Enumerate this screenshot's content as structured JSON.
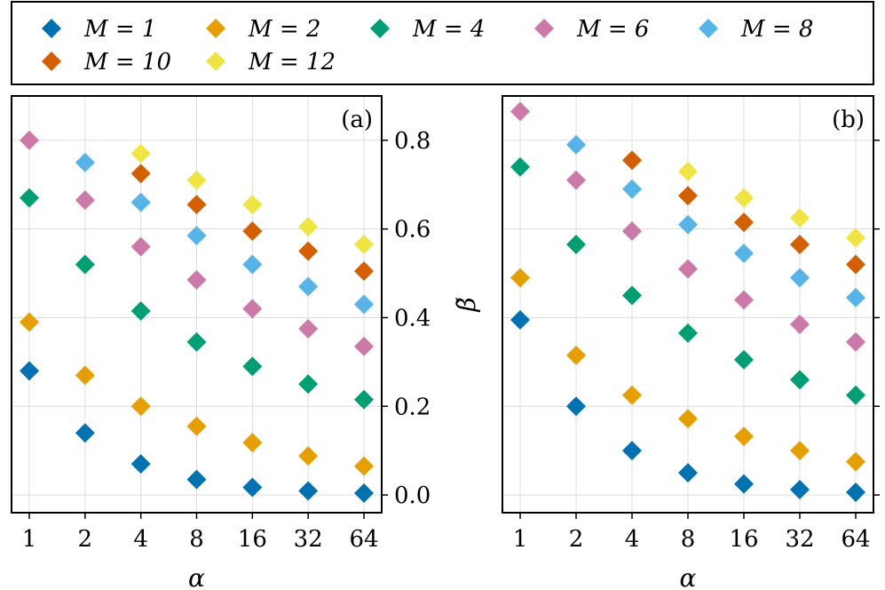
{
  "legend": {
    "entries": [
      {
        "label": "M = 1",
        "color": "#0072B2"
      },
      {
        "label": "M = 2",
        "color": "#E69F00"
      },
      {
        "label": "M = 4",
        "color": "#009E73"
      },
      {
        "label": "M = 6",
        "color": "#CC79A7"
      },
      {
        "label": "M = 8",
        "color": "#56B4E9"
      },
      {
        "label": "M = 10",
        "color": "#D55E00"
      },
      {
        "label": "M = 12",
        "color": "#F0E442"
      }
    ]
  },
  "chart_data": [
    {
      "type": "scatter",
      "panel_label": "(a)",
      "xlabel": "α",
      "ylabel": "β̃",
      "x_categories": [
        "1",
        "2",
        "4",
        "8",
        "16",
        "32",
        "64"
      ],
      "ylim": [
        -0.04,
        0.9
      ],
      "yticks": [
        "0.0",
        "0.2",
        "0.4",
        "0.6",
        "0.8"
      ],
      "yaxis_side": "right",
      "grid": true,
      "series": [
        {
          "name": "M = 1",
          "values": [
            0.28,
            0.14,
            0.07,
            0.035,
            0.017,
            0.009,
            0.004
          ]
        },
        {
          "name": "M = 2",
          "values": [
            0.39,
            0.27,
            0.2,
            0.155,
            0.118,
            0.088,
            0.065
          ]
        },
        {
          "name": "M = 4",
          "values": [
            0.67,
            0.52,
            0.415,
            0.345,
            0.29,
            0.25,
            0.215
          ]
        },
        {
          "name": "M = 6",
          "values": [
            0.8,
            0.665,
            0.56,
            0.485,
            0.42,
            0.375,
            0.335
          ]
        },
        {
          "name": "M = 8",
          "values": [
            null,
            0.75,
            0.66,
            0.585,
            0.52,
            0.47,
            0.43
          ]
        },
        {
          "name": "M = 10",
          "values": [
            null,
            null,
            0.725,
            0.655,
            0.595,
            0.55,
            0.505
          ]
        },
        {
          "name": "M = 12",
          "values": [
            null,
            null,
            0.77,
            0.71,
            0.655,
            0.605,
            0.565
          ]
        }
      ]
    },
    {
      "type": "scatter",
      "panel_label": "(b)",
      "xlabel": "α",
      "x_categories": [
        "1",
        "2",
        "4",
        "8",
        "16",
        "32",
        "64"
      ],
      "ylim": [
        -0.04,
        0.9
      ],
      "yaxis_side": "right",
      "grid": true,
      "series": [
        {
          "name": "M = 1",
          "values": [
            0.395,
            0.2,
            0.1,
            0.05,
            0.025,
            0.012,
            0.006
          ]
        },
        {
          "name": "M = 2",
          "values": [
            0.49,
            0.315,
            0.225,
            0.172,
            0.132,
            0.1,
            0.075
          ]
        },
        {
          "name": "M = 4",
          "values": [
            0.74,
            0.565,
            0.45,
            0.365,
            0.305,
            0.26,
            0.225
          ]
        },
        {
          "name": "M = 6",
          "values": [
            0.865,
            0.71,
            0.595,
            0.51,
            0.44,
            0.385,
            0.345
          ]
        },
        {
          "name": "M = 8",
          "values": [
            null,
            0.79,
            0.69,
            0.61,
            0.545,
            0.49,
            0.445
          ]
        },
        {
          "name": "M = 10",
          "values": [
            null,
            null,
            0.755,
            0.675,
            0.615,
            0.565,
            0.52
          ]
        },
        {
          "name": "M = 12",
          "values": [
            null,
            null,
            null,
            0.73,
            0.67,
            0.625,
            0.58
          ]
        }
      ]
    }
  ]
}
